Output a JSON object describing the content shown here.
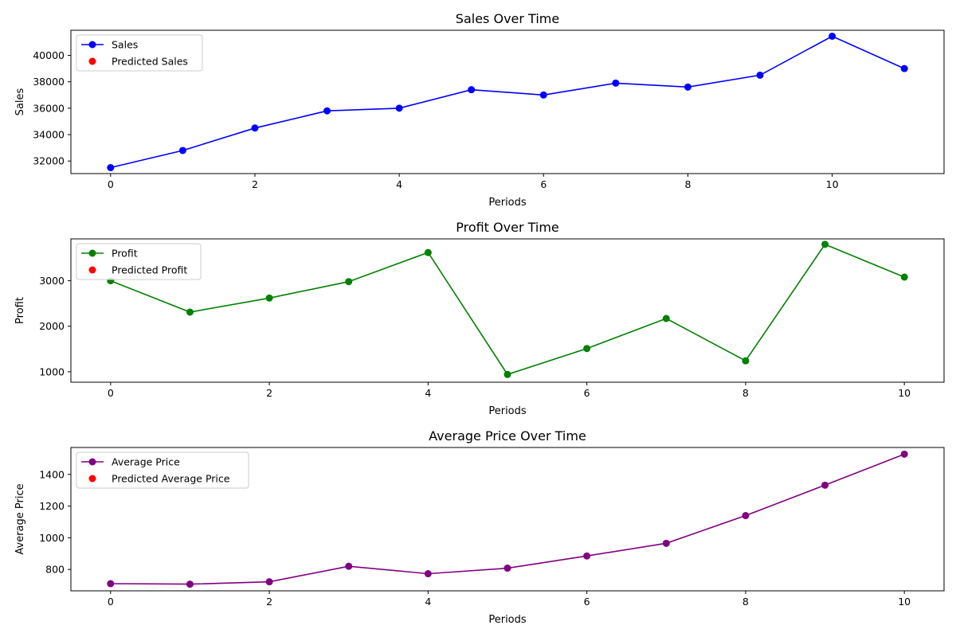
{
  "chart_data": [
    {
      "type": "line",
      "title": "Sales Over Time",
      "xlabel": "Periods",
      "ylabel": "Sales",
      "xlim": [
        -0.55,
        11.55
      ],
      "ylim": [
        31050,
        41900
      ],
      "xticks": [
        0,
        2,
        4,
        6,
        8,
        10
      ],
      "xtick_labels": [
        "0",
        "2",
        "4",
        "6",
        "8",
        "10"
      ],
      "yticks": [
        32000,
        34000,
        36000,
        38000,
        40000
      ],
      "ytick_labels": [
        "32000",
        "34000",
        "36000",
        "38000",
        "40000"
      ],
      "grid": false,
      "legend": "upper-left",
      "series": [
        {
          "name": "Sales",
          "color": "#0000ff",
          "marker": "circle",
          "x": [
            0,
            1,
            2,
            3,
            4,
            5,
            6,
            7,
            8,
            9,
            10,
            11
          ],
          "values": [
            31500,
            32800,
            34500,
            35800,
            36000,
            37400,
            37000,
            37900,
            37600,
            38500,
            41450,
            39000
          ]
        },
        {
          "name": "Predicted Sales",
          "color": "#ff0000",
          "marker": "circle",
          "x": [],
          "values": []
        }
      ]
    },
    {
      "type": "line",
      "title": "Profit Over Time",
      "xlabel": "Periods",
      "ylabel": "Profit",
      "xlim": [
        -0.5,
        10.5
      ],
      "ylim": [
        770,
        3920
      ],
      "xticks": [
        0,
        2,
        4,
        6,
        8,
        10
      ],
      "xtick_labels": [
        "0",
        "2",
        "4",
        "6",
        "8",
        "10"
      ],
      "yticks": [
        1000,
        2000,
        3000
      ],
      "ytick_labels": [
        "1000",
        "2000",
        "3000"
      ],
      "grid": false,
      "legend": "upper-left",
      "series": [
        {
          "name": "Profit",
          "color": "#008000",
          "marker": "circle",
          "x": [
            0,
            1,
            2,
            3,
            4,
            5,
            6,
            7,
            8,
            9,
            10
          ],
          "values": [
            3000,
            2310,
            2620,
            2980,
            3620,
            940,
            1510,
            2170,
            1240,
            3800,
            3080
          ]
        },
        {
          "name": "Predicted Profit",
          "color": "#ff0000",
          "marker": "circle",
          "x": [],
          "values": []
        }
      ]
    },
    {
      "type": "line",
      "title": "Average Price Over Time",
      "xlabel": "Periods",
      "ylabel": "Average Price",
      "xlim": [
        -0.5,
        10.5
      ],
      "ylim": [
        665,
        1570
      ],
      "xticks": [
        0,
        2,
        4,
        6,
        8,
        10
      ],
      "xtick_labels": [
        "0",
        "2",
        "4",
        "6",
        "8",
        "10"
      ],
      "yticks": [
        800,
        1000,
        1200,
        1400
      ],
      "ytick_labels": [
        "800",
        "1000",
        "1200",
        "1400"
      ],
      "grid": false,
      "legend": "upper-left",
      "series": [
        {
          "name": "Average Price",
          "color": "#800080",
          "marker": "circle",
          "x": [
            0,
            1,
            2,
            3,
            4,
            5,
            6,
            7,
            8,
            9,
            10
          ],
          "values": [
            710,
            707,
            722,
            820,
            773,
            808,
            885,
            965,
            1140,
            1332,
            1528
          ]
        },
        {
          "name": "Predicted Average Price",
          "color": "#ff0000",
          "marker": "circle",
          "x": [],
          "values": []
        }
      ]
    }
  ]
}
